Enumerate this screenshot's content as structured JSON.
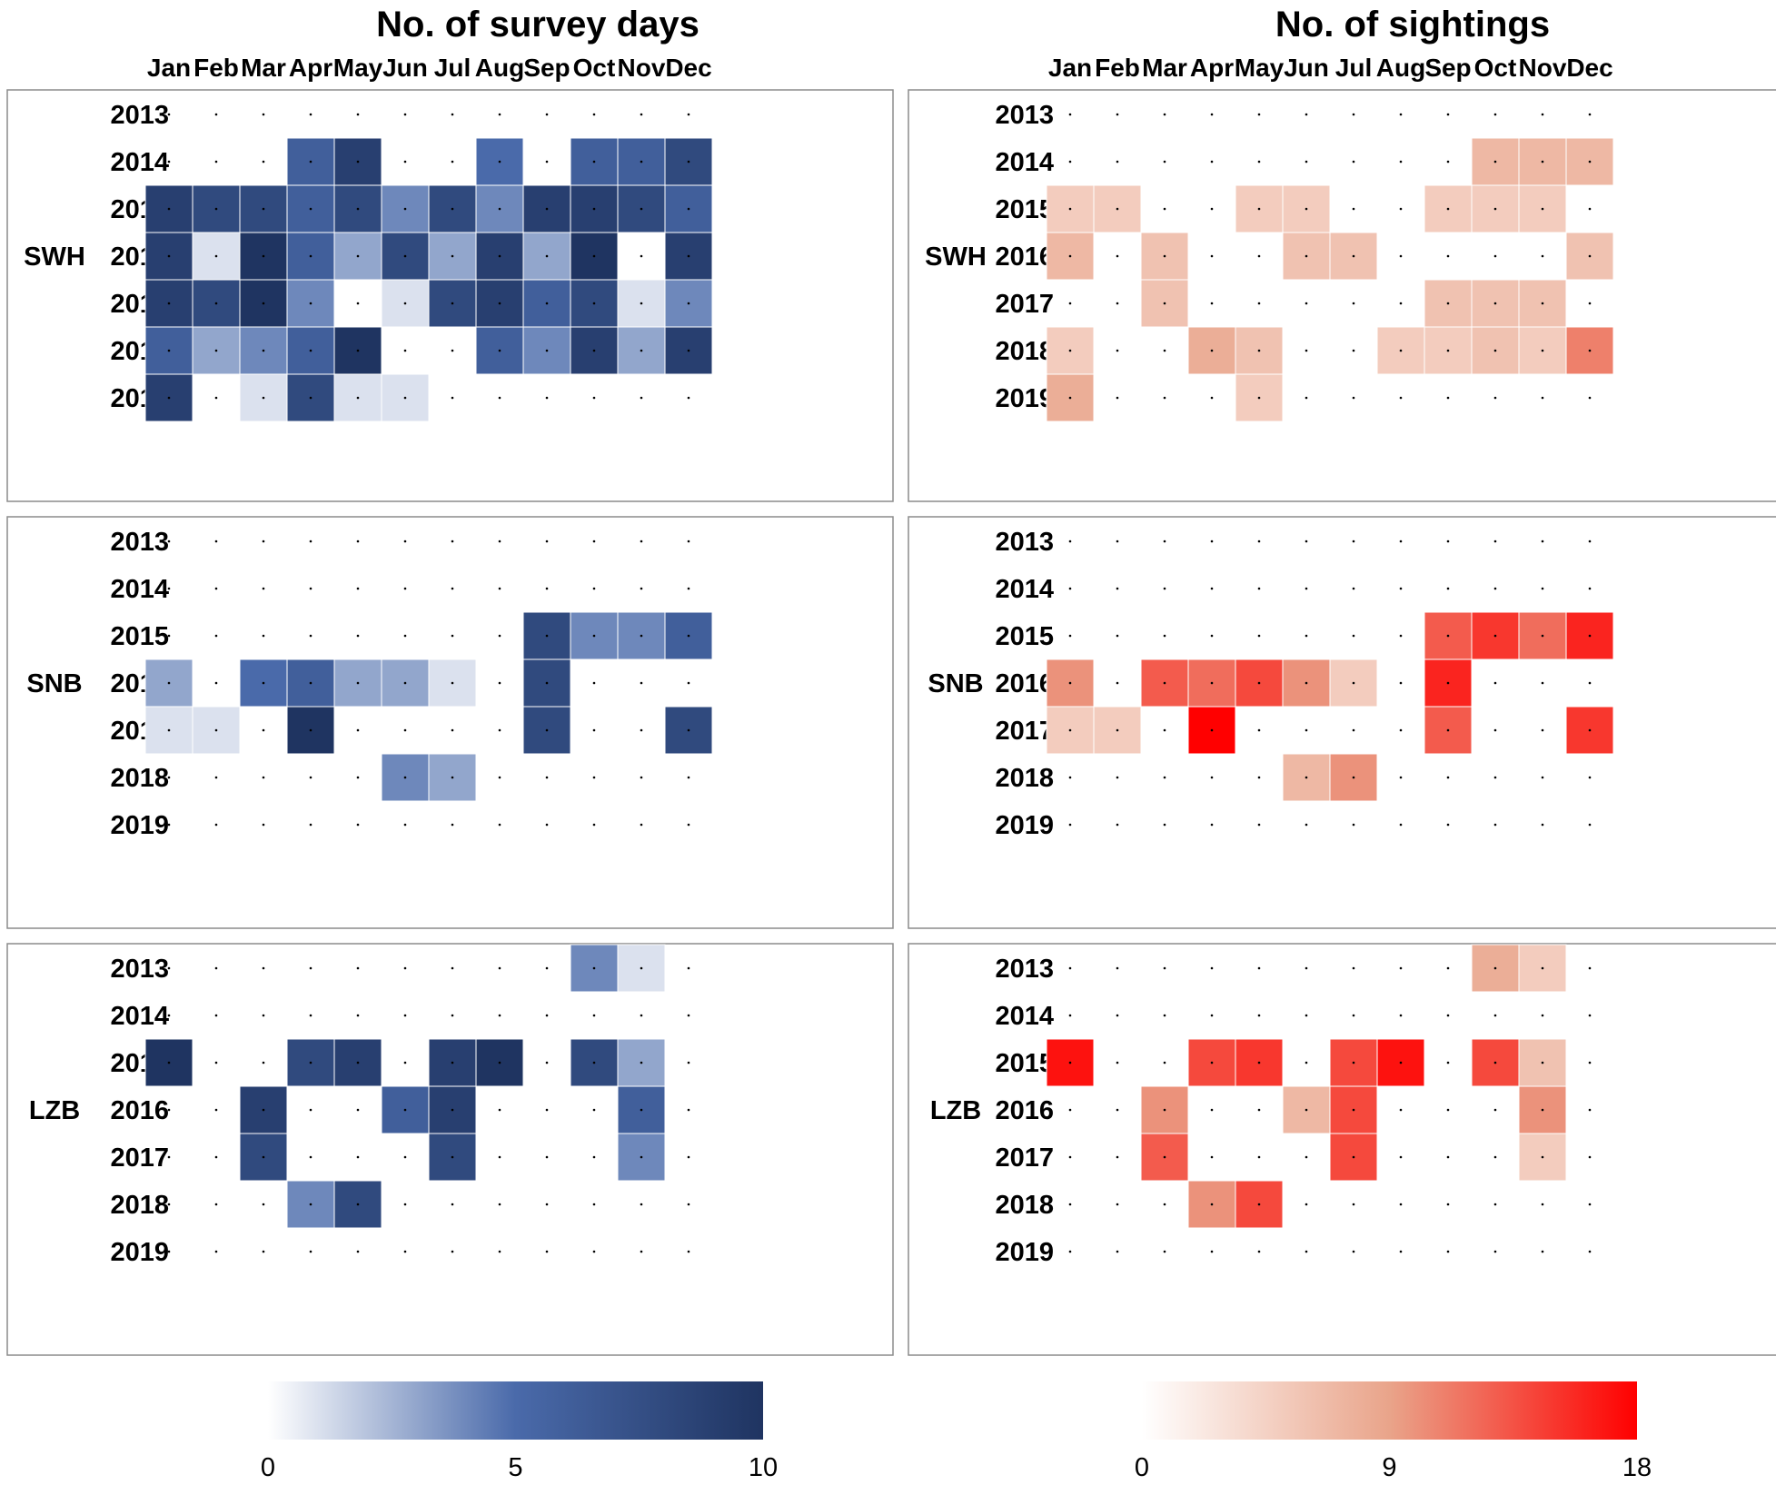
{
  "chart_data": {
    "type": "heatmap",
    "months": [
      "Jan",
      "Feb",
      "Mar",
      "Apr",
      "May",
      "Jun",
      "Jul",
      "Aug",
      "Sep",
      "Oct",
      "Nov",
      "Dec"
    ],
    "years": [
      "2013",
      "2014",
      "2015",
      "2016",
      "2017",
      "2018",
      "2019"
    ],
    "sites": [
      "SWH",
      "SNB",
      "LZB"
    ],
    "panels": [
      {
        "title": "No. of survey days",
        "colormap": {
          "min_color": "#ffffff",
          "max_color": "#1f3461",
          "mid_color": "#4a6aaa"
        },
        "colorbar": {
          "min": 0,
          "max": 10,
          "ticks": [
            "0",
            "5",
            "10"
          ]
        },
        "data": {
          "SWH": [
            [
              0,
              0,
              0,
              0,
              0,
              0,
              0,
              0,
              0,
              0,
              0,
              0
            ],
            [
              0,
              0,
              0,
              6,
              9,
              0,
              0,
              5,
              0,
              6,
              6,
              8
            ],
            [
              9,
              8,
              8,
              6,
              8,
              4,
              8,
              4,
              9,
              9,
              8,
              6
            ],
            [
              9,
              1,
              10,
              6,
              3,
              8,
              3,
              9,
              3,
              10,
              0,
              9
            ],
            [
              9,
              8,
              10,
              4,
              0,
              1,
              8,
              9,
              6,
              8,
              1,
              4
            ],
            [
              6,
              3,
              4,
              6,
              10,
              0,
              0,
              6,
              4,
              9,
              3,
              9
            ],
            [
              9,
              0,
              1,
              8,
              1,
              1,
              0,
              0,
              0,
              0,
              0,
              0
            ]
          ],
          "SNB": [
            [
              0,
              0,
              0,
              0,
              0,
              0,
              0,
              0,
              0,
              0,
              0,
              0
            ],
            [
              0,
              0,
              0,
              0,
              0,
              0,
              0,
              0,
              0,
              0,
              0,
              0
            ],
            [
              0,
              0,
              0,
              0,
              0,
              0,
              0,
              0,
              8,
              4,
              4,
              6
            ],
            [
              3,
              0,
              5,
              6,
              3,
              3,
              1,
              0,
              8,
              0,
              0,
              0
            ],
            [
              1,
              1,
              0,
              10,
              0,
              0,
              0,
              0,
              8,
              0,
              0,
              8
            ],
            [
              0,
              0,
              0,
              0,
              0,
              4,
              3,
              0,
              0,
              0,
              0,
              0
            ],
            [
              0,
              0,
              0,
              0,
              0,
              0,
              0,
              0,
              0,
              0,
              0,
              0
            ]
          ],
          "LZB": [
            [
              0,
              0,
              0,
              0,
              0,
              0,
              0,
              0,
              0,
              4,
              1,
              0
            ],
            [
              0,
              0,
              0,
              0,
              0,
              0,
              0,
              0,
              0,
              0,
              0,
              0
            ],
            [
              10,
              0,
              0,
              8,
              9,
              0,
              9,
              10,
              0,
              8,
              3,
              0
            ],
            [
              0,
              0,
              9,
              0,
              0,
              6,
              9,
              0,
              0,
              0,
              6,
              0
            ],
            [
              0,
              0,
              8,
              0,
              0,
              0,
              8,
              0,
              0,
              0,
              4,
              0
            ],
            [
              0,
              0,
              0,
              4,
              8,
              0,
              0,
              0,
              0,
              0,
              0,
              0
            ],
            [
              0,
              0,
              0,
              0,
              0,
              0,
              0,
              0,
              0,
              0,
              0,
              0
            ]
          ]
        }
      },
      {
        "title": "No. of sightings",
        "colormap": {
          "min_color": "#ffffff",
          "max_color": "#ff0000",
          "mid_color": "#e9a48a"
        },
        "colorbar": {
          "min": 0,
          "max": 18,
          "ticks": [
            "0",
            "9",
            "18"
          ]
        },
        "data": {
          "SWH": [
            [
              0,
              0,
              0,
              0,
              0,
              0,
              0,
              0,
              0,
              0,
              0,
              0
            ],
            [
              0,
              0,
              0,
              0,
              0,
              0,
              0,
              0,
              0,
              7,
              7,
              7
            ],
            [
              5,
              5,
              0,
              0,
              5,
              5,
              0,
              0,
              5,
              5,
              5,
              0
            ],
            [
              7,
              0,
              6,
              0,
              0,
              6,
              6,
              0,
              0,
              0,
              0,
              6
            ],
            [
              0,
              0,
              6,
              0,
              0,
              0,
              0,
              0,
              6,
              6,
              6,
              0
            ],
            [
              5,
              0,
              0,
              8,
              6,
              0,
              0,
              5,
              5,
              6,
              5,
              11
            ],
            [
              8,
              0,
              0,
              0,
              5,
              0,
              0,
              0,
              0,
              0,
              0,
              0
            ]
          ],
          "SNB": [
            [
              0,
              0,
              0,
              0,
              0,
              0,
              0,
              0,
              0,
              0,
              0,
              0
            ],
            [
              0,
              0,
              0,
              0,
              0,
              0,
              0,
              0,
              0,
              0,
              0,
              0
            ],
            [
              0,
              0,
              0,
              0,
              0,
              0,
              0,
              0,
              13,
              15,
              12,
              16
            ],
            [
              10,
              0,
              13,
              12,
              14,
              10,
              5,
              0,
              16,
              0,
              0,
              0
            ],
            [
              5,
              5,
              0,
              18,
              0,
              0,
              0,
              0,
              13,
              0,
              0,
              15
            ],
            [
              0,
              0,
              0,
              0,
              0,
              7,
              10,
              0,
              0,
              0,
              0,
              0
            ],
            [
              0,
              0,
              0,
              0,
              0,
              0,
              0,
              0,
              0,
              0,
              0,
              0
            ]
          ],
          "LZB": [
            [
              0,
              0,
              0,
              0,
              0,
              0,
              0,
              0,
              0,
              8,
              5,
              0
            ],
            [
              0,
              0,
              0,
              0,
              0,
              0,
              0,
              0,
              0,
              0,
              0,
              0
            ],
            [
              17,
              0,
              0,
              14,
              15,
              0,
              14,
              17,
              0,
              14,
              6,
              0
            ],
            [
              0,
              0,
              10,
              0,
              0,
              7,
              14,
              0,
              0,
              0,
              10,
              0
            ],
            [
              0,
              0,
              13,
              0,
              0,
              0,
              14,
              0,
              0,
              0,
              5,
              0
            ],
            [
              0,
              0,
              0,
              10,
              14,
              0,
              0,
              0,
              0,
              0,
              0,
              0
            ],
            [
              0,
              0,
              0,
              0,
              0,
              0,
              0,
              0,
              0,
              0,
              0,
              0
            ]
          ]
        }
      }
    ]
  }
}
